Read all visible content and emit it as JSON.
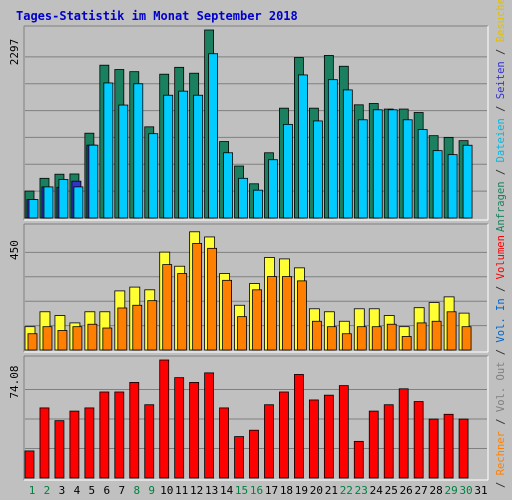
{
  "chart_data": {
    "type": "bar",
    "title": "Tages-Statistik im Monat September 2018",
    "days": [
      "1",
      "2",
      "3",
      "4",
      "5",
      "6",
      "7",
      "8",
      "9",
      "10",
      "11",
      "12",
      "13",
      "14",
      "15",
      "16",
      "17",
      "18",
      "19",
      "20",
      "21",
      "22",
      "23",
      "24",
      "25",
      "26",
      "27",
      "28",
      "29",
      "30",
      "31"
    ],
    "weekend_days": [
      "1",
      "2",
      "8",
      "9",
      "15",
      "16",
      "22",
      "23",
      "29",
      "30"
    ],
    "panels": [
      {
        "name": "top",
        "ymax_label": "2297",
        "ylim": [
          0,
          2297
        ],
        "series": [
          {
            "name": "Anfragen",
            "color": "#1a8060",
            "values": [
              329,
              485,
              535,
              538,
              1036,
              1867,
              1814,
              1788,
              1114,
              1757,
              1841,
              1769,
              2297,
              934,
              635,
              418,
              797,
              1342,
              1960,
              1342,
              1986,
              1854,
              1383,
              1399,
              1331,
              1331,
              1289,
              1006,
              985,
              945,
              0
            ]
          },
          {
            "name": "Seiten",
            "color": "#3333cc",
            "values": [
              225,
              380,
              375,
              450,
              890,
              0,
              0,
              0,
              0,
              0,
              0,
              0,
              0,
              0,
              0,
              0,
              0,
              0,
              0,
              0,
              0,
              0,
              0,
              0,
              0,
              0,
              0,
              0,
              0,
              0,
              0
            ]
          },
          {
            "name": "Dateien",
            "color": "#00ccff",
            "values": [
              225,
              380,
              470,
              380,
              890,
              1650,
              1380,
              1640,
              1030,
              1500,
              1550,
              1500,
              2007,
              797,
              485,
              340,
              712,
              1144,
              1748,
              1186,
              1690,
              1565,
              1200,
              1322,
              1322,
              1200,
              1080,
              823,
              774,
              889,
              0
            ]
          }
        ]
      },
      {
        "name": "middle",
        "ymax_label": "450",
        "ylim": [
          0,
          450
        ],
        "series": [
          {
            "name": "Besuche",
            "color": "#ffff33",
            "values": [
              86,
              141,
              127,
              100,
              141,
              141,
              218,
              232,
              222,
              361,
              309,
              436,
              417,
              282,
              165,
              245,
              341,
              336,
              303,
              152,
              141,
              106,
              152,
              152,
              127,
              86,
              156,
              175,
              196,
              136,
              0
            ]
          },
          {
            "name": "Rechner",
            "color": "#ff8000",
            "values": [
              60,
              86,
              72,
              86,
              95,
              81,
              155,
              165,
              182,
              315,
              282,
              393,
              375,
              257,
              123,
              222,
              271,
              271,
              255,
              106,
              86,
              60,
              86,
              86,
              95,
              50,
              100,
              106,
              141,
              86,
              0
            ]
          }
        ]
      },
      {
        "name": "bottom",
        "ymax_label": "74.08",
        "ylim": [
          0,
          74.08
        ],
        "series": [
          {
            "name": "Volumen",
            "color": "#ff0000",
            "values": [
              17,
              44,
              36,
              42,
              44,
              54,
              54,
              60,
              46,
              74.08,
              63,
              60,
              66,
              44,
              26,
              30,
              46,
              54,
              65,
              49,
              52,
              58,
              23,
              42,
              46,
              56,
              48,
              37,
              40,
              37,
              0
            ]
          }
        ]
      }
    ],
    "legend_right": {
      "top": [
        {
          "text": "Anfragen",
          "color": "#1a8060"
        },
        {
          "text": " / ",
          "color": "#303030"
        },
        {
          "text": "Dateien",
          "color": "#00b8e6"
        },
        {
          "text": " / ",
          "color": "#303030"
        },
        {
          "text": "Seiten",
          "color": "#3333cc"
        },
        {
          "text": " / ",
          "color": "#303030"
        },
        {
          "text": "Besuche",
          "color": "#e0c000"
        }
      ],
      "bottom": [
        {
          "text": " / ",
          "color": "#303030"
        },
        {
          "text": "Rechner",
          "color": "#ff8000"
        },
        {
          "text": " / ",
          "color": "#303030"
        },
        {
          "text": "Vol. Out",
          "color": "#808080"
        },
        {
          "text": " / ",
          "color": "#303030"
        },
        {
          "text": "Vol. In",
          "color": "#0066cc"
        },
        {
          "text": " / ",
          "color": "#303030"
        },
        {
          "text": "Volumen",
          "color": "#ff0000"
        }
      ]
    },
    "colors": {
      "background": "#c0c0c0",
      "title": "#0000cc",
      "axis_label": "#000000",
      "weekday_label": "#000000",
      "weekend_label": "#008040",
      "gridline": "#808080",
      "frame_dark": "#808080",
      "frame_light": "#ffffff"
    }
  }
}
